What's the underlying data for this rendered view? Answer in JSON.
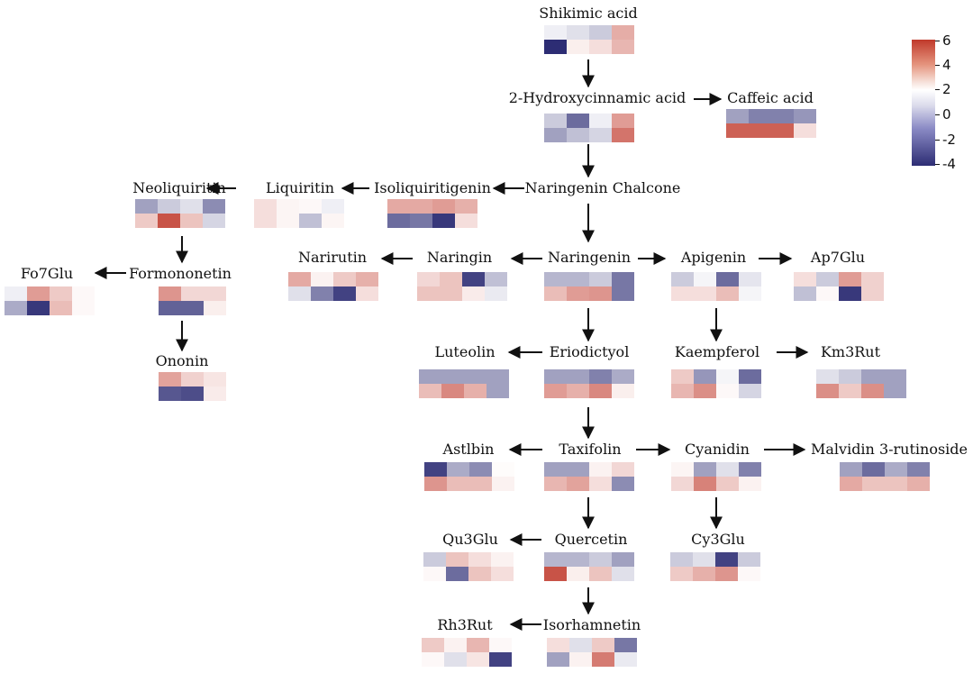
{
  "scale": {
    "colors": {
      "high": "#c0392b",
      "mid": "#ffffff",
      "low": "#2d2d74"
    },
    "ticks": [
      "6",
      "4",
      "2",
      "0",
      "-2",
      "-4"
    ],
    "values": [
      6,
      4,
      2,
      0,
      -2,
      -4
    ]
  },
  "nodes": [
    {
      "id": "shikimic",
      "label": "Shikimic acid",
      "cells": [
        -0.3,
        -0.6,
        -1.0,
        2.5,
        -4.0,
        0.5,
        1.0,
        2.2
      ]
    },
    {
      "id": "hydroxy",
      "label": "2-Hydroxycinnamic acid",
      "cells": [
        -1.0,
        -2.8,
        -0.3,
        3.0,
        -1.8,
        -1.2,
        -0.8,
        4.2
      ]
    },
    {
      "id": "caffeic",
      "label": "Caffeic acid",
      "cells": [
        -1.8,
        -2.4,
        -2.4,
        -2.0,
        4.8,
        4.8,
        4.8,
        1.0
      ]
    },
    {
      "id": "naringenin_chalcone",
      "label": "Naringenin Chalcone",
      "cells": []
    },
    {
      "id": "isoliquiritigenin",
      "label": "Isoliquiritigenin",
      "cells": [
        2.6,
        2.6,
        3.0,
        2.4,
        -2.8,
        -2.6,
        -3.8,
        1.0
      ]
    },
    {
      "id": "liquiritin",
      "label": "Liquiritin",
      "cells": [
        1.0,
        0.3,
        0.2,
        -0.3,
        1.0,
        0.3,
        -1.2,
        0.3
      ]
    },
    {
      "id": "neoliquiritin",
      "label": "Neoliquiritin",
      "cells": [
        -1.8,
        -1.0,
        -0.6,
        -2.2,
        1.6,
        5.2,
        1.8,
        -0.8
      ]
    },
    {
      "id": "formononetin",
      "label": "Formononetin",
      "cells": [
        null,
        3.2,
        1.2,
        1.2,
        null,
        -3.0,
        -3.0,
        0.5
      ]
    },
    {
      "id": "fo7glu",
      "label": "Fo7Glu",
      "cells": [
        -0.3,
        3.0,
        1.6,
        0.2,
        -1.6,
        -3.8,
        2.0,
        0.2
      ]
    },
    {
      "id": "ononin",
      "label": "Ononin",
      "cells": [
        null,
        2.8,
        1.4,
        0.8,
        null,
        -3.2,
        -3.4,
        0.6
      ]
    },
    {
      "id": "narirutin",
      "label": "Narirutin",
      "cells": [
        2.6,
        0.4,
        1.6,
        2.4,
        -0.6,
        -2.4,
        -3.6,
        1.0
      ]
    },
    {
      "id": "naringin",
      "label": "Naringin",
      "cells": [
        1.2,
        1.8,
        -3.6,
        -1.2,
        1.8,
        1.8,
        0.6,
        -0.4
      ]
    },
    {
      "id": "naringenin",
      "label": "Naringenin",
      "cells": [
        -1.4,
        -1.4,
        -1.0,
        -2.6,
        2.0,
        3.0,
        3.2,
        -2.6
      ]
    },
    {
      "id": "apigenin",
      "label": "Apigenin",
      "cells": [
        -1.0,
        -0.2,
        -2.8,
        -0.5,
        1.0,
        1.0,
        2.0,
        -0.2
      ]
    },
    {
      "id": "ap7glu",
      "label": "Ap7Glu",
      "cells": [
        1.0,
        -1.0,
        3.0,
        1.4,
        -1.2,
        0.2,
        -3.8,
        1.4
      ]
    },
    {
      "id": "luteolin",
      "label": "Luteolin",
      "cells": [
        -1.8,
        -1.8,
        -1.8,
        -1.8,
        2.0,
        3.6,
        2.4,
        -1.8
      ]
    },
    {
      "id": "eriodictyol",
      "label": "Eriodictyol",
      "cells": [
        -1.8,
        -1.8,
        -2.4,
        -1.6,
        3.0,
        2.4,
        3.6,
        0.5
      ]
    },
    {
      "id": "kaempferol",
      "label": "Kaempferol",
      "cells": [
        1.6,
        -2.0,
        -0.2,
        -2.8,
        2.2,
        3.4,
        0.2,
        -0.8
      ]
    },
    {
      "id": "km3rut",
      "label": "Km3Rut",
      "cells": [
        -0.6,
        -1.0,
        -1.8,
        -1.8,
        3.4,
        1.6,
        3.4,
        -1.8
      ]
    },
    {
      "id": "astlbin",
      "label": "Astlbin",
      "cells": [
        -3.6,
        -1.6,
        -2.2,
        0.1,
        3.2,
        2.0,
        2.0,
        0.4
      ]
    },
    {
      "id": "taxifolin",
      "label": "Taxifolin",
      "cells": [
        -1.8,
        -1.8,
        0.4,
        1.2,
        2.2,
        2.8,
        1.0,
        -2.2
      ]
    },
    {
      "id": "cyanidin",
      "label": "Cyanidin",
      "cells": [
        0.3,
        -1.8,
        -0.6,
        -2.4,
        1.2,
        3.8,
        1.6,
        0.4
      ]
    },
    {
      "id": "malvidin",
      "label": "Malvidin 3-rutinoside",
      "cells": [
        -1.8,
        -2.8,
        -1.6,
        -2.4,
        2.6,
        1.8,
        1.8,
        2.4
      ]
    },
    {
      "id": "qu3glu",
      "label": "Qu3Glu",
      "cells": [
        -1.0,
        1.8,
        1.0,
        0.4,
        0.2,
        -2.8,
        1.8,
        1.0
      ]
    },
    {
      "id": "quercetin",
      "label": "Quercetin",
      "cells": [
        -1.4,
        -1.4,
        -1.0,
        -1.8,
        5.2,
        0.5,
        1.8,
        -0.6
      ]
    },
    {
      "id": "cy3glu",
      "label": "Cy3Glu",
      "cells": [
        -1.0,
        -0.6,
        -3.6,
        -1.0,
        1.6,
        2.4,
        3.2,
        0.2
      ]
    },
    {
      "id": "rh3rut",
      "label": "Rh3Rut",
      "cells": [
        1.6,
        0.4,
        2.2,
        0.2,
        0.2,
        -0.6,
        0.8,
        -3.6
      ]
    },
    {
      "id": "isorhamnetin",
      "label": "Isorhamnetin",
      "cells": [
        1.0,
        -0.6,
        1.6,
        -2.6,
        -1.8,
        0.4,
        4.0,
        -0.4
      ]
    }
  ]
}
